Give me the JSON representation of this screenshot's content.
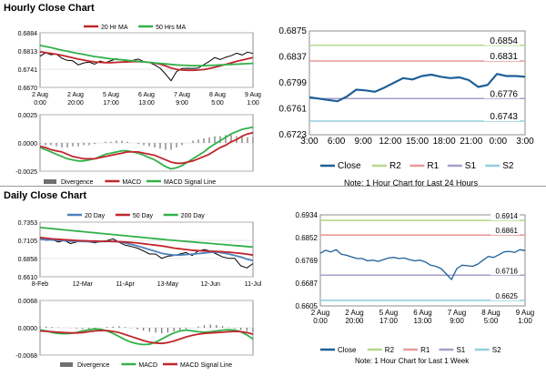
{
  "sections": {
    "hourly_title": "Hourly Close Chart",
    "daily_title": "Daily Close Chart",
    "hourly_note": "Note: 1 Hour Chart for Last 24 Hours",
    "daily_note": "Note: 1 Hour Chart for Last 1 Week"
  },
  "colors": {
    "close": "#1f5f99",
    "ma_red": "#c0262d",
    "ma_green": "#33b14a",
    "blue_ma": "#4f81bd",
    "r2": "#b5d88c",
    "r1": "#e89a9a",
    "s1": "#a79ec8",
    "s2": "#92d0df",
    "divergence": "#707070",
    "macd": "#33b14a",
    "signal_red": "#c0262d"
  },
  "chart_data": [
    {
      "id": "hourly_price",
      "type": "line",
      "legend": [
        "20 Hr MA",
        "50 Hrs MA"
      ],
      "yticks": [
        "0.6884",
        "0.6813",
        "0.6741",
        "0.6670"
      ],
      "ylim": [
        0.667,
        0.6884
      ],
      "xticks": [
        "2 Aug\n0:00",
        "2 Aug\n20:00",
        "5 Aug\n17:00",
        "6 Aug\n13:00",
        "7 Aug\n9:00",
        "8 Aug\n5:00",
        "9 Aug\n1:00"
      ],
      "series": [
        {
          "name": "Close",
          "color": "#000000",
          "values": [
            0.6792,
            0.6806,
            0.6798,
            0.6801,
            0.6784,
            0.6776,
            0.6774,
            0.6758,
            0.6766,
            0.6769,
            0.6761,
            0.6773,
            0.6767,
            0.6775,
            0.6782,
            0.6778,
            0.6771,
            0.6776,
            0.6781,
            0.6771,
            0.6768,
            0.6758,
            0.6745,
            0.6722,
            0.6696,
            0.6732,
            0.6744,
            0.6745,
            0.6744,
            0.6746,
            0.6759,
            0.6772,
            0.6787,
            0.6779,
            0.6788,
            0.6794,
            0.6804,
            0.6797,
            0.6808,
            0.6803
          ]
        },
        {
          "name": "20 Hr MA",
          "color": "#c0262d",
          "values": [
            0.681,
            0.6806,
            0.6803,
            0.68,
            0.6796,
            0.6791,
            0.6786,
            0.6781,
            0.6777,
            0.6773,
            0.677,
            0.6768,
            0.6767,
            0.6767,
            0.6768,
            0.6769,
            0.677,
            0.6771,
            0.6771,
            0.677,
            0.6768,
            0.6765,
            0.6761,
            0.6754,
            0.6746,
            0.6741,
            0.6738,
            0.6737,
            0.6737,
            0.6738,
            0.674,
            0.6744,
            0.6749,
            0.6754,
            0.676,
            0.6766,
            0.6772,
            0.6777,
            0.6782,
            0.6787
          ]
        },
        {
          "name": "50 Hrs MA",
          "color": "#33b14a",
          "values": [
            0.6835,
            0.683,
            0.6826,
            0.6821,
            0.6816,
            0.6812,
            0.6807,
            0.6803,
            0.6799,
            0.6795,
            0.6791,
            0.6788,
            0.6785,
            0.6782,
            0.678,
            0.6778,
            0.6776,
            0.6774,
            0.6772,
            0.677,
            0.6768,
            0.6766,
            0.6764,
            0.6762,
            0.676,
            0.6758,
            0.6757,
            0.6756,
            0.6755,
            0.6755,
            0.6755,
            0.6756,
            0.6757,
            0.6758,
            0.6759,
            0.676,
            0.6761,
            0.6762,
            0.6763,
            0.6764
          ]
        }
      ]
    },
    {
      "id": "hourly_macd",
      "type": "line",
      "legend": [
        "Divergence",
        "MACD",
        "MACD Signal Line"
      ],
      "yticks": [
        "0.0025",
        "0.0000",
        "-0.0025"
      ],
      "ylim": [
        -0.0025,
        0.0025
      ],
      "divergence": [
        -0.0001,
        -0.0002,
        -0.0002,
        -0.0003,
        -0.0004,
        -0.0004,
        -0.0003,
        -0.0003,
        -0.0002,
        -0.0002,
        -0.0001,
        0.0,
        0.0001,
        0.0001,
        0.0002,
        0.0002,
        0.0001,
        0.0,
        -0.0001,
        -0.0002,
        -0.0003,
        -0.0004,
        -0.0005,
        -0.0006,
        -0.0006,
        -0.0004,
        -0.0002,
        0.0,
        0.0002,
        0.0003,
        0.0004,
        0.0005,
        0.0006,
        0.0006,
        0.0007,
        0.0007,
        0.0006,
        0.0006,
        0.0005,
        0.0005
      ],
      "series": [
        {
          "name": "MACD",
          "color": "#33b14a",
          "values": [
            -0.0004,
            -0.0006,
            -0.0008,
            -0.001,
            -0.0012,
            -0.0014,
            -0.0015,
            -0.0016,
            -0.0016,
            -0.0015,
            -0.0014,
            -0.0012,
            -0.001,
            -0.0009,
            -0.0008,
            -0.0007,
            -0.0007,
            -0.0008,
            -0.0009,
            -0.0011,
            -0.0013,
            -0.0015,
            -0.0018,
            -0.0021,
            -0.0023,
            -0.0022,
            -0.002,
            -0.0017,
            -0.0014,
            -0.0011,
            -0.0008,
            -0.0004,
            -0.0001,
            0.0002,
            0.0005,
            0.0008,
            0.001,
            0.0012,
            0.0013,
            0.0014
          ]
        },
        {
          "name": "MACD Signal Line",
          "color": "#c0262d",
          "values": [
            -0.0003,
            -0.0004,
            -0.0006,
            -0.0007,
            -0.0008,
            -0.001,
            -0.0012,
            -0.0013,
            -0.0014,
            -0.0014,
            -0.0014,
            -0.0013,
            -0.0012,
            -0.0011,
            -0.001,
            -0.0009,
            -0.0008,
            -0.0008,
            -0.0008,
            -0.0009,
            -0.001,
            -0.0011,
            -0.0013,
            -0.0015,
            -0.0017,
            -0.0018,
            -0.0018,
            -0.0017,
            -0.0016,
            -0.0014,
            -0.0012,
            -0.001,
            -0.0007,
            -0.0004,
            -0.0002,
            0.0001,
            0.0003,
            0.0006,
            0.0008,
            0.0009
          ]
        }
      ]
    },
    {
      "id": "hourly_close_24h",
      "type": "line",
      "yticks": [
        "0.6875",
        "0.6837",
        "0.6799",
        "0.6761",
        "0.6723"
      ],
      "ylim": [
        0.6723,
        0.6875
      ],
      "xticks": [
        "3:00",
        "6:00",
        "9:00",
        "12:00",
        "15:00",
        "18:00",
        "21:00",
        "0:00",
        "3:00"
      ],
      "legend": [
        "Close",
        "R2",
        "R1",
        "S1",
        "S2"
      ],
      "levels": [
        {
          "name": "R2",
          "value": 0.6854,
          "label": "0.6854"
        },
        {
          "name": "R1",
          "value": 0.6831,
          "label": "0.6831"
        },
        {
          "name": "S1",
          "value": 0.6776,
          "label": "0.6776"
        },
        {
          "name": "S2",
          "value": 0.6743,
          "label": "0.6743"
        }
      ],
      "series": [
        {
          "name": "Close",
          "values": [
            0.6778,
            0.6776,
            0.6774,
            0.6772,
            0.6779,
            0.6789,
            0.6788,
            0.6786,
            0.6792,
            0.6799,
            0.6806,
            0.6804,
            0.6809,
            0.6811,
            0.6808,
            0.6806,
            0.6807,
            0.6803,
            0.6793,
            0.6796,
            0.6812,
            0.6809,
            0.6809,
            0.6808
          ]
        }
      ]
    },
    {
      "id": "daily_price",
      "type": "line",
      "legend": [
        "20 Day",
        "50 Day",
        "200 Day"
      ],
      "yticks": [
        "0.7353",
        "0.7105",
        "0.6858",
        "0.6610"
      ],
      "ylim": [
        0.661,
        0.7353
      ],
      "xticks": [
        "8-Feb",
        "12-Mar",
        "11-Apr",
        "13-May",
        "12-Jun",
        "11-Jul"
      ],
      "series": [
        {
          "name": "Close",
          "color": "#000000",
          "values": [
            0.7128,
            0.7107,
            0.7116,
            0.7082,
            0.7105,
            0.7062,
            0.7083,
            0.7098,
            0.7085,
            0.7071,
            0.7089,
            0.7101,
            0.7126,
            0.7078,
            0.704,
            0.7021,
            0.7,
            0.696,
            0.692,
            0.692,
            0.686,
            0.689,
            0.69,
            0.692,
            0.694,
            0.69,
            0.696,
            0.698,
            0.696,
            0.692,
            0.688,
            0.686,
            0.686,
            0.676,
            0.673,
            0.679
          ]
        },
        {
          "name": "20 Day",
          "color": "#4f81bd",
          "values": [
            0.712,
            0.7115,
            0.711,
            0.7105,
            0.71,
            0.7096,
            0.7092,
            0.709,
            0.7088,
            0.7086,
            0.7088,
            0.7091,
            0.7092,
            0.7085,
            0.707,
            0.705,
            0.703,
            0.7005,
            0.698,
            0.6955,
            0.693,
            0.6915,
            0.6905,
            0.6905,
            0.6912,
            0.6918,
            0.6925,
            0.6935,
            0.6942,
            0.6945,
            0.6935,
            0.692,
            0.69,
            0.688,
            0.685,
            0.683
          ]
        },
        {
          "name": "50 Day",
          "color": "#c0262d",
          "values": [
            0.7145,
            0.7135,
            0.7125,
            0.712,
            0.7114,
            0.7109,
            0.7104,
            0.71,
            0.7097,
            0.7095,
            0.7093,
            0.7092,
            0.709,
            0.7087,
            0.7083,
            0.7077,
            0.707,
            0.706,
            0.705,
            0.704,
            0.703,
            0.7015,
            0.7,
            0.699,
            0.698,
            0.6972,
            0.6966,
            0.6962,
            0.6958,
            0.6955,
            0.695,
            0.6944,
            0.6937,
            0.6928,
            0.6918,
            0.6905
          ]
        },
        {
          "name": "200 Day",
          "color": "#33b14a",
          "values": [
            0.728,
            0.7272,
            0.7264,
            0.7256,
            0.7248,
            0.724,
            0.7232,
            0.7224,
            0.7216,
            0.7208,
            0.72,
            0.7192,
            0.7184,
            0.7176,
            0.7168,
            0.716,
            0.7152,
            0.7144,
            0.7136,
            0.7128,
            0.712,
            0.7112,
            0.7105,
            0.7098,
            0.7091,
            0.7084,
            0.7077,
            0.707,
            0.7063,
            0.7056,
            0.7049,
            0.7042,
            0.7035,
            0.7028,
            0.7021,
            0.7014
          ]
        }
      ]
    },
    {
      "id": "daily_macd",
      "type": "line",
      "legend": [
        "Divergence",
        "MACD",
        "MACD Signal Line"
      ],
      "yticks": [
        "0.0068",
        "0.0000",
        "-0.0068"
      ],
      "ylim": [
        -0.0068,
        0.0068
      ],
      "divergence": [
        0.0004,
        0.0003,
        0.0002,
        0.0001,
        0.0,
        -0.0001,
        -0.0002,
        -0.0003,
        -0.0002,
        -0.0001,
        0.0,
        0.0002,
        0.0003,
        0.0004,
        0.0002,
        -0.0001,
        -0.0004,
        -0.0007,
        -0.001,
        -0.0012,
        -0.0014,
        -0.0012,
        -0.0009,
        -0.0006,
        -0.0003,
        0.0,
        0.0003,
        0.0006,
        0.0008,
        0.0007,
        0.0004,
        0.0001,
        -0.0002,
        -0.0005,
        -0.0008,
        -0.001
      ],
      "series": [
        {
          "name": "MACD",
          "color": "#33b14a",
          "values": [
            -0.0005,
            -0.0008,
            -0.0012,
            -0.0014,
            -0.0015,
            -0.0014,
            -0.0012,
            -0.0008,
            -0.0005,
            -0.0003,
            -0.0004,
            -0.0008,
            -0.0014,
            -0.0022,
            -0.003,
            -0.0036,
            -0.004,
            -0.0042,
            -0.0041,
            -0.0036,
            -0.0028,
            -0.002,
            -0.0013,
            -0.0008,
            -0.0006,
            -0.0008,
            -0.001,
            -0.0011,
            -0.001,
            -0.0008,
            -0.0006,
            -0.0005,
            -0.0006,
            -0.001,
            -0.0018,
            -0.0028
          ]
        },
        {
          "name": "MACD Signal Line",
          "color": "#c0262d",
          "values": [
            -0.0008,
            -0.0009,
            -0.001,
            -0.0011,
            -0.0012,
            -0.0013,
            -0.0013,
            -0.0012,
            -0.001,
            -0.0008,
            -0.0007,
            -0.0007,
            -0.0009,
            -0.0012,
            -0.0017,
            -0.0022,
            -0.0027,
            -0.0032,
            -0.0036,
            -0.0038,
            -0.0039,
            -0.0037,
            -0.0033,
            -0.0028,
            -0.0023,
            -0.0019,
            -0.0016,
            -0.0014,
            -0.0013,
            -0.0012,
            -0.0011,
            -0.001,
            -0.0009,
            -0.001,
            -0.0012,
            -0.0016
          ]
        }
      ]
    },
    {
      "id": "daily_close_week",
      "type": "line",
      "yticks": [
        "0.6934",
        "0.6852",
        "0.6769",
        "0.6687",
        "0.6605"
      ],
      "ylim": [
        0.6605,
        0.6934
      ],
      "xticks": [
        "2 Aug\n0:00",
        "2 Aug\n20:00",
        "5 Aug\n17:00",
        "6 Aug\n13:00",
        "7 Aug\n9:00",
        "8 Aug\n5:00",
        "9 Aug\n1:00"
      ],
      "legend": [
        "Close",
        "R2",
        "R1",
        "S1",
        "S2"
      ],
      "levels": [
        {
          "name": "R2",
          "value": 0.6914,
          "label": "0.6914"
        },
        {
          "name": "R1",
          "value": 0.6861,
          "label": "0.6861"
        },
        {
          "name": "S1",
          "value": 0.6716,
          "label": "0.6716"
        },
        {
          "name": "S2",
          "value": 0.6625,
          "label": "0.6625"
        }
      ],
      "series": [
        {
          "name": "Close",
          "values": [
            0.6795,
            0.6806,
            0.68,
            0.6808,
            0.6792,
            0.6788,
            0.6782,
            0.6776,
            0.6776,
            0.6768,
            0.677,
            0.6766,
            0.6772,
            0.6778,
            0.678,
            0.6776,
            0.6778,
            0.6772,
            0.6768,
            0.677,
            0.6764,
            0.6752,
            0.6748,
            0.674,
            0.672,
            0.67,
            0.674,
            0.6752,
            0.675,
            0.6748,
            0.6756,
            0.677,
            0.6784,
            0.678,
            0.679,
            0.68,
            0.6802,
            0.6798,
            0.6808,
            0.6805
          ]
        }
      ]
    }
  ]
}
